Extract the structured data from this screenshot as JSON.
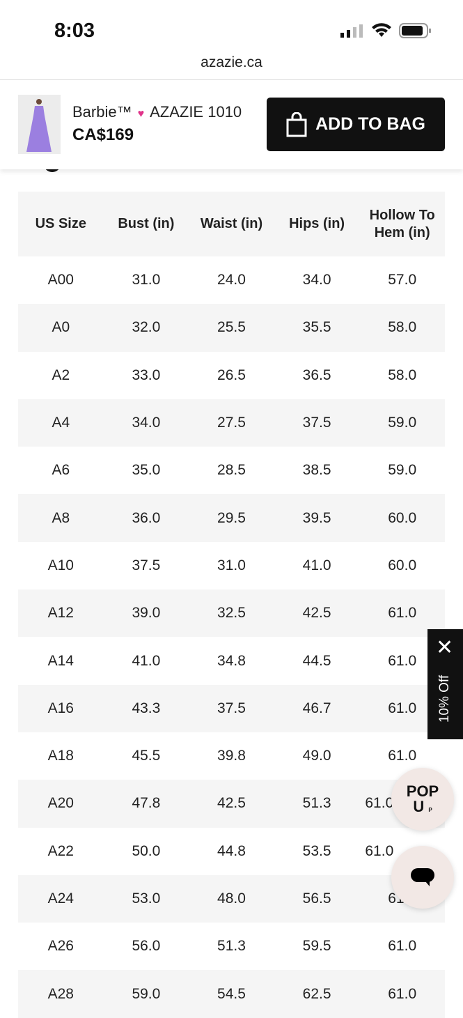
{
  "status": {
    "time": "8:03"
  },
  "browser": {
    "url": "azazie.ca"
  },
  "product": {
    "brand": "Barbie™",
    "model": "AZAZIE 1010",
    "price": "CA$169",
    "add_label": "ADD TO BAG",
    "accent": "#e0338a"
  },
  "table": {
    "headers": [
      "US Size",
      "Bust (in)",
      "Waist (in)",
      "Hips (in)",
      "Hollow To Hem (in)"
    ],
    "rows": [
      [
        "A00",
        "31.0",
        "24.0",
        "34.0",
        "57.0"
      ],
      [
        "A0",
        "32.0",
        "25.5",
        "35.5",
        "58.0"
      ],
      [
        "A2",
        "33.0",
        "26.5",
        "36.5",
        "58.0"
      ],
      [
        "A4",
        "34.0",
        "27.5",
        "37.5",
        "59.0"
      ],
      [
        "A6",
        "35.0",
        "28.5",
        "38.5",
        "59.0"
      ],
      [
        "A8",
        "36.0",
        "29.5",
        "39.5",
        "60.0"
      ],
      [
        "A10",
        "37.5",
        "31.0",
        "41.0",
        "60.0"
      ],
      [
        "A12",
        "39.0",
        "32.5",
        "42.5",
        "61.0"
      ],
      [
        "A14",
        "41.0",
        "34.8",
        "44.5",
        "61.0"
      ],
      [
        "A16",
        "43.3",
        "37.5",
        "46.7",
        "61.0"
      ],
      [
        "A18",
        "45.5",
        "39.8",
        "49.0",
        "61.0"
      ],
      [
        "A20",
        "47.8",
        "42.5",
        "51.3",
        "61.0"
      ],
      [
        "A22",
        "50.0",
        "44.8",
        "53.5",
        "61.0"
      ],
      [
        "A24",
        "53.0",
        "48.0",
        "56.5",
        "61.0"
      ],
      [
        "A26",
        "56.0",
        "51.3",
        "59.5",
        "61.0"
      ],
      [
        "A28",
        "59.0",
        "54.5",
        "62.5",
        "61.0"
      ]
    ]
  },
  "promo": {
    "label": "10% Off",
    "close": "✕"
  },
  "popup": {
    "line1": "POP",
    "line2": "U",
    "small": "P"
  }
}
